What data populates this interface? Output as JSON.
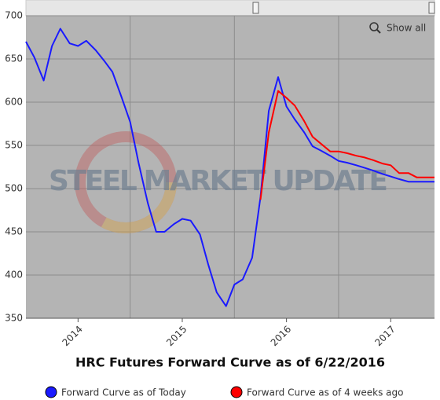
{
  "chart_data": {
    "type": "line",
    "title": "HRC Futures Forward Curve as of 6/22/2016",
    "watermark": "STEEL MARKET UPDATE",
    "button": "Show all",
    "series": [
      {
        "name": "Forward Curve as of Today",
        "color": "#1a1aff",
        "x": [
          2013.5,
          2013.58,
          2013.67,
          2013.75,
          2013.83,
          2013.92,
          2014,
          2014.08,
          2014.17,
          2014.25,
          2014.33,
          2014.42,
          2014.5,
          2014.58,
          2014.67,
          2014.75,
          2014.83,
          2014.92,
          2015,
          2015.08,
          2015.17,
          2015.25,
          2015.33,
          2015.42,
          2015.5,
          2015.58,
          2015.67,
          2015.75,
          2015.83,
          2015.92,
          2016,
          2016.08,
          2016.17,
          2016.25,
          2016.33,
          2016.42,
          2016.5,
          2016.58,
          2016.67,
          2016.75,
          2016.83,
          2016.92,
          2017,
          2017.08,
          2017.17,
          2017.25,
          2017.33,
          2017.42
        ],
        "values": [
          670,
          652,
          625,
          665,
          685,
          668,
          665,
          671,
          660,
          648,
          635,
          605,
          577,
          530,
          483,
          450,
          450,
          459,
          465,
          463,
          447,
          412,
          380,
          364,
          389,
          395,
          420,
          490,
          590,
          629,
          595,
          580,
          565,
          549,
          544,
          538,
          532,
          530,
          527,
          524,
          521,
          517,
          514,
          511,
          508,
          508,
          508,
          508
        ]
      },
      {
        "name": "Forward Curve as of 4 weeks ago",
        "color": "#ff0000",
        "x": [
          2015.75,
          2015.83,
          2015.92,
          2016,
          2016.08,
          2016.17,
          2016.25,
          2016.33,
          2016.42,
          2016.5,
          2016.58,
          2016.67,
          2016.75,
          2016.83,
          2016.92,
          2017,
          2017.08,
          2017.17,
          2017.25,
          2017.33,
          2017.42
        ],
        "values": [
          487,
          565,
          613,
          605,
          596,
          578,
          560,
          552,
          543,
          543,
          541,
          538,
          536,
          533,
          529,
          527,
          518,
          518,
          513,
          513,
          513
        ]
      }
    ],
    "xlim": [
      2013.5,
      2017.42
    ],
    "xticks": [
      2014,
      2015,
      2016,
      2017
    ],
    "xgrid": [
      2014.5,
      2015.5,
      2016.5
    ],
    "ylim": [
      350,
      700
    ],
    "yticks": [
      350,
      400,
      450,
      500,
      550,
      600,
      650,
      700
    ],
    "grid": true
  }
}
